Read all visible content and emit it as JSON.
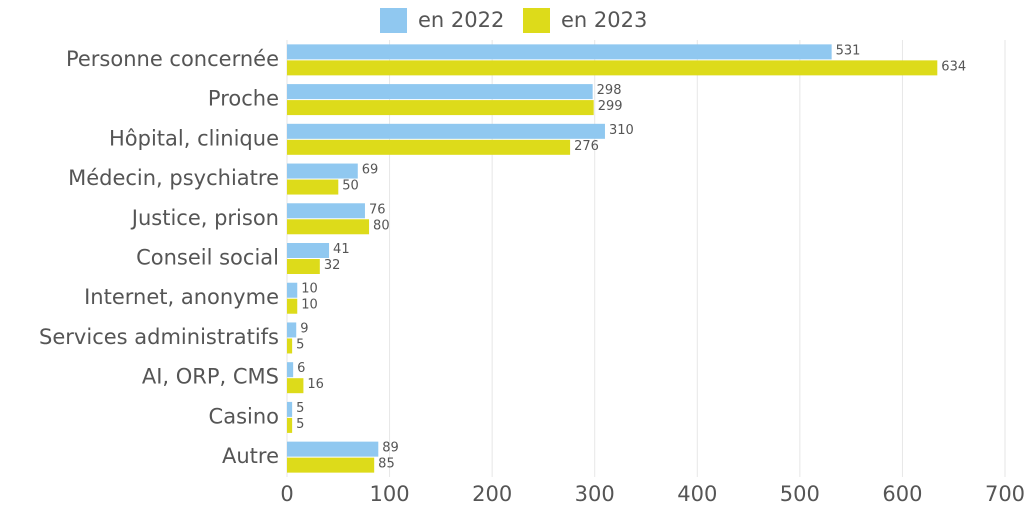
{
  "chart_data": {
    "type": "bar",
    "orientation": "horizontal",
    "categories": [
      "Personne concernée",
      "Proche",
      "Hôpital, clinique",
      "Médecin, psychiatre",
      "Justice, prison",
      "Conseil social",
      "Internet, anonyme",
      "Services administratifs",
      "AI, ORP, CMS",
      "Casino",
      "Autre"
    ],
    "series": [
      {
        "name": "en 2022",
        "color": "#90c8f0",
        "values": [
          531,
          298,
          310,
          69,
          76,
          41,
          10,
          9,
          6,
          5,
          89
        ]
      },
      {
        "name": "en 2023",
        "color": "#dddb1a",
        "values": [
          634,
          299,
          276,
          50,
          80,
          32,
          10,
          5,
          16,
          5,
          85
        ]
      }
    ],
    "xlim": [
      0,
      700
    ],
    "xticks": [
      0,
      100,
      200,
      300,
      400,
      500,
      600,
      700
    ],
    "grid": true,
    "legend": "top"
  }
}
